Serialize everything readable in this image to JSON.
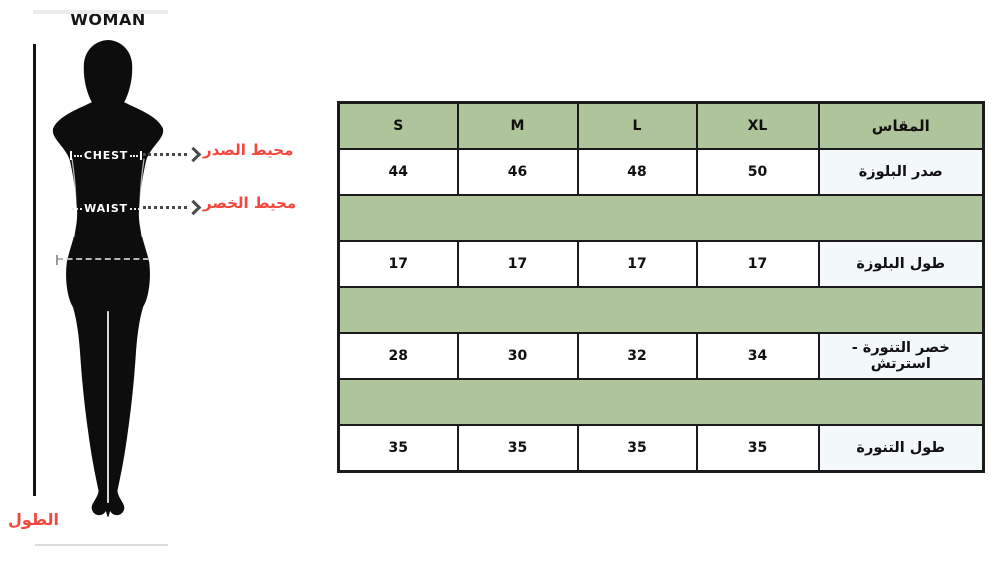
{
  "figure": {
    "title": "WOMAN",
    "chest_label": "CHEST",
    "waist_label": "WAIST",
    "chest_label_ar": "محيط الصدر",
    "waist_label_ar": "محيط الخصر",
    "height_label_ar": "الطول"
  },
  "table": {
    "header": {
      "sizes": [
        "S",
        "M",
        "L",
        "XL"
      ],
      "measure_label": "المقاس"
    },
    "rows": [
      {
        "label": "صدر البلوزة",
        "values": [
          "44",
          "46",
          "48",
          "50"
        ]
      },
      {
        "label": "طول البلوزة",
        "values": [
          "17",
          "17",
          "17",
          "17"
        ]
      },
      {
        "label": "خصر التنورة - استرتش",
        "values": [
          "28",
          "30",
          "32",
          "34"
        ]
      },
      {
        "label": "طول التنورة",
        "values": [
          "35",
          "35",
          "35",
          "35"
        ]
      }
    ]
  },
  "icons": {
    "leader_arrow": "chevron-right-icon",
    "silhouette": "woman-silhouette"
  },
  "colors": {
    "green": "#aec49b",
    "label_cell": "#f3f9fa",
    "red": "#f4473d",
    "border": "#1b1b1b"
  }
}
